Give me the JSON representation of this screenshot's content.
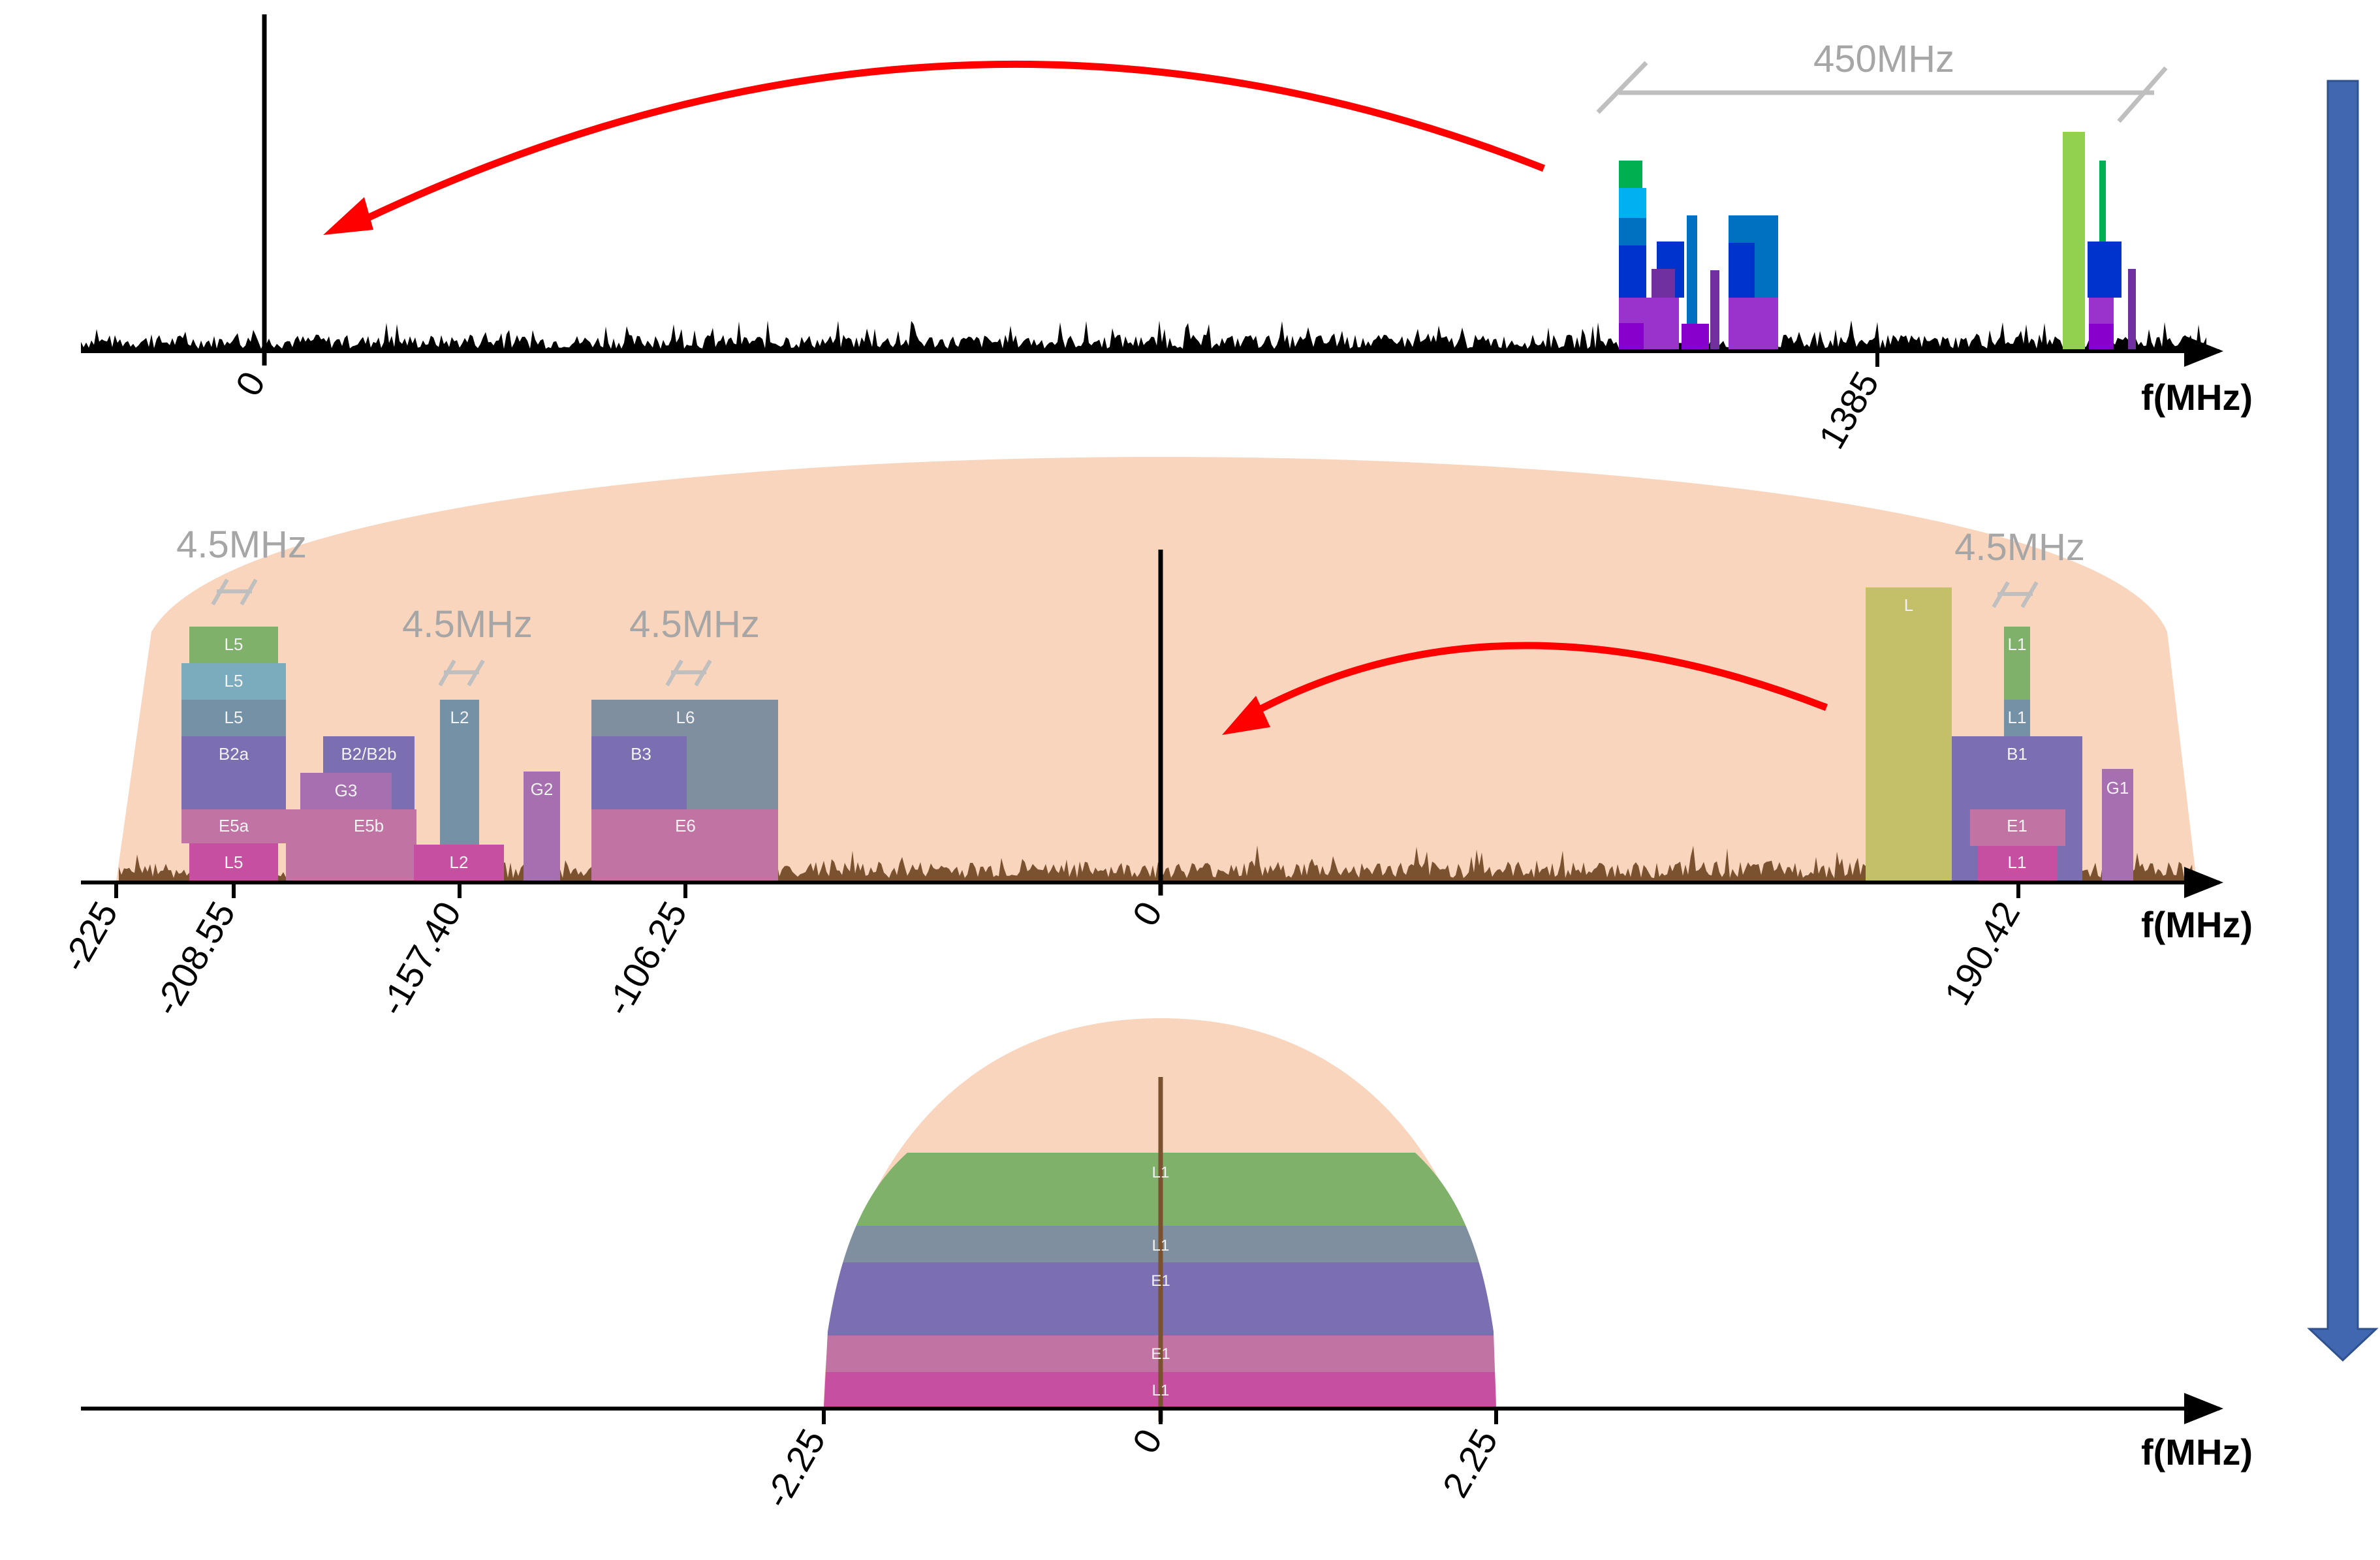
{
  "axis_unit": "f(MHz)",
  "panels": {
    "rf": {
      "ticks": [
        "0",
        "1385"
      ],
      "bandwidth_label": "450MHz"
    },
    "if": {
      "ticks": [
        "-225",
        "-208.55",
        "-157.40",
        "-106.25",
        "0",
        "190.42"
      ],
      "bw_labels": [
        "4.5MHz",
        "4.5MHz",
        "4.5MHz",
        "4.5MHz"
      ],
      "group_l5": [
        "L5",
        "L5",
        "L5",
        "B2a",
        "E5a",
        "L5"
      ],
      "group_b2": [
        "B2/B2b",
        "G3",
        "E5b"
      ],
      "group_l2": [
        "L2",
        "L2"
      ],
      "group_g2": "G2",
      "group_l6": [
        "L6",
        "B3",
        "E6"
      ],
      "group_l": "L",
      "group_l1": [
        "L1",
        "L1",
        "B1",
        "E1",
        "L1"
      ],
      "group_g1": "G1"
    },
    "bb": {
      "ticks": [
        "-2.25",
        "0",
        "2.25"
      ],
      "bands": [
        "L1",
        "L1",
        "E1",
        "E1",
        "L1"
      ]
    }
  },
  "colors": {
    "noise": "#000000",
    "noise_if": "#7a5230",
    "envelope": "#f9d5be",
    "arrow_red": "#ff0000",
    "flow_arrow": "#4167b1",
    "bw_gray": "#bfbfbf"
  },
  "flow_arrow": "down-arrow"
}
